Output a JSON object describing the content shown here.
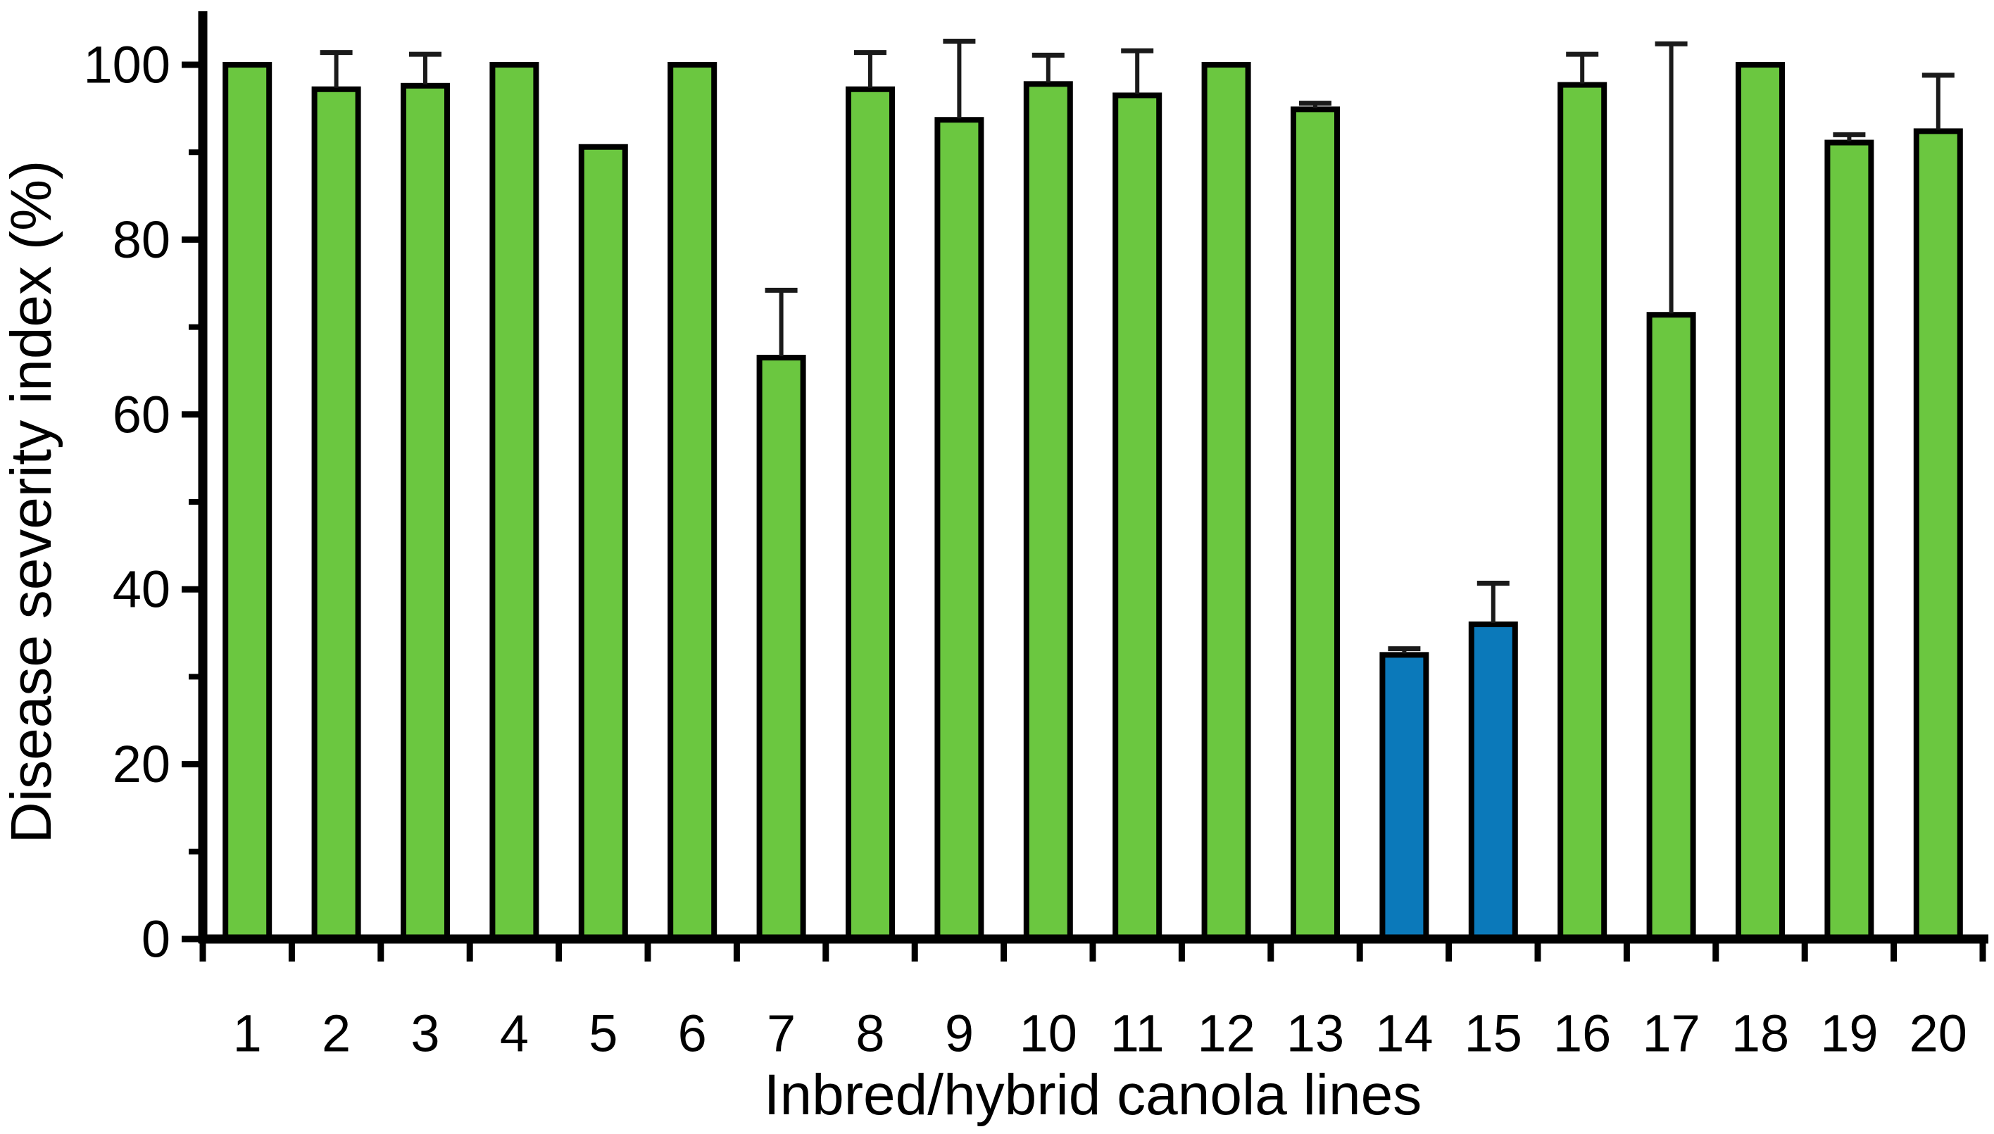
{
  "chart_data": {
    "type": "bar",
    "title": "",
    "xlabel": "Inbred/hybrid canola lines",
    "ylabel": "Disease severity index (%)",
    "categories": [
      "1",
      "2",
      "3",
      "4",
      "5",
      "6",
      "7",
      "8",
      "9",
      "10",
      "11",
      "12",
      "13",
      "14",
      "15",
      "16",
      "17",
      "18",
      "19",
      "20"
    ],
    "series": [
      {
        "name": "Disease severity index",
        "values": [
          100,
          97.2,
          97.6,
          100,
          90.6,
          100,
          66.5,
          97.2,
          93.7,
          97.8,
          96.5,
          100,
          94.9,
          32.5,
          36.0,
          97.7,
          71.4,
          100,
          91.1,
          92.4
        ],
        "errors_upper": [
          0,
          4.2,
          3.6,
          0,
          0,
          0,
          7.7,
          4.2,
          9.0,
          3.3,
          5.1,
          0,
          0.7,
          0.7,
          4.7,
          3.5,
          31.0,
          0,
          0.9,
          6.4
        ]
      }
    ],
    "bar_color_keys": [
      "green",
      "green",
      "green",
      "green",
      "green",
      "green",
      "green",
      "green",
      "green",
      "green",
      "green",
      "green",
      "green",
      "blue",
      "blue",
      "green",
      "green",
      "green",
      "green",
      "green"
    ],
    "colors": {
      "green": "#6bc740",
      "blue": "#0b79ba",
      "bar_border": "#000000",
      "axis": "#000000",
      "error_bar": "#1a1a1a",
      "background": "#ffffff"
    },
    "ylim": [
      0,
      105
    ],
    "yticks_major": [
      0,
      20,
      40,
      60,
      80,
      100
    ],
    "yticks_minor": [
      10,
      30,
      50,
      70,
      90
    ],
    "grid": false,
    "legend": null,
    "error_bars_direction": "upper-only",
    "bar_outline": true
  }
}
